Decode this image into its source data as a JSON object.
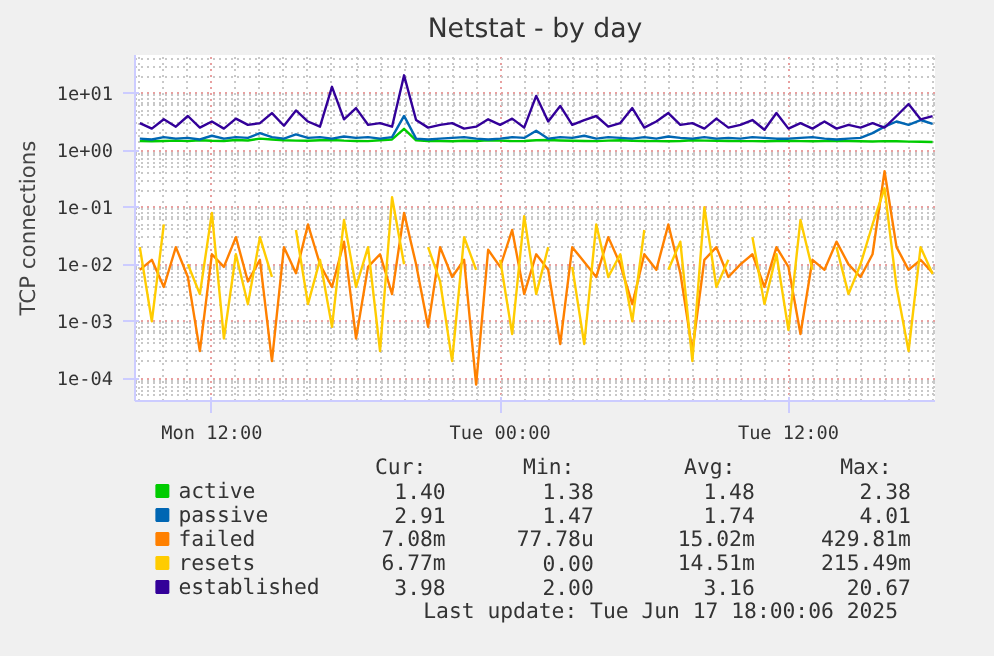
{
  "chart_data": {
    "type": "line",
    "title": "Netstat - by day",
    "ylabel": "TCP connections",
    "x": [
      "2025-06-16T09:00",
      "2025-06-16T09:30",
      "2025-06-16T10:00",
      "2025-06-16T10:30",
      "2025-06-16T11:00",
      "2025-06-16T11:30",
      "2025-06-16T12:00",
      "2025-06-16T12:30",
      "2025-06-16T13:00",
      "2025-06-16T13:30",
      "2025-06-16T14:00",
      "2025-06-16T14:30",
      "2025-06-16T15:00",
      "2025-06-16T15:30",
      "2025-06-16T16:00",
      "2025-06-16T16:30",
      "2025-06-16T17:00",
      "2025-06-16T17:30",
      "2025-06-16T18:00",
      "2025-06-16T18:30",
      "2025-06-16T19:00",
      "2025-06-16T19:30",
      "2025-06-16T20:00",
      "2025-06-16T20:30",
      "2025-06-16T21:00",
      "2025-06-16T21:30",
      "2025-06-16T22:00",
      "2025-06-16T22:30",
      "2025-06-16T23:00",
      "2025-06-16T23:30",
      "2025-06-17T00:00",
      "2025-06-17T00:30",
      "2025-06-17T01:00",
      "2025-06-17T01:30",
      "2025-06-17T02:00",
      "2025-06-17T02:30",
      "2025-06-17T03:00",
      "2025-06-17T03:30",
      "2025-06-17T04:00",
      "2025-06-17T04:30",
      "2025-06-17T05:00",
      "2025-06-17T05:30",
      "2025-06-17T06:00",
      "2025-06-17T06:30",
      "2025-06-17T07:00",
      "2025-06-17T07:30",
      "2025-06-17T08:00",
      "2025-06-17T08:30",
      "2025-06-17T09:00",
      "2025-06-17T09:30",
      "2025-06-17T10:00",
      "2025-06-17T10:30",
      "2025-06-17T11:00",
      "2025-06-17T11:30",
      "2025-06-17T12:00",
      "2025-06-17T12:30",
      "2025-06-17T13:00",
      "2025-06-17T13:30",
      "2025-06-17T14:00",
      "2025-06-17T14:30",
      "2025-06-17T15:00",
      "2025-06-17T15:30",
      "2025-06-17T16:00",
      "2025-06-17T16:30",
      "2025-06-17T17:00",
      "2025-06-17T17:30",
      "2025-06-17T18:00"
    ],
    "xlim": [
      "2025-06-16T08:48",
      "2025-06-17T18:06"
    ],
    "xticks": [
      {
        "value": "2025-06-16T12:00",
        "label": "Mon 12:00"
      },
      {
        "value": "2025-06-17T00:00",
        "label": "Tue 00:00"
      },
      {
        "value": "2025-06-17T12:00",
        "label": "Tue 12:00"
      }
    ],
    "log": "y",
    "ylim": [
      4e-05,
      47
    ],
    "yticks": [
      {
        "value": 0.0001,
        "label": "1e-04"
      },
      {
        "value": 0.001,
        "label": "1e-03"
      },
      {
        "value": 0.01,
        "label": "1e-02"
      },
      {
        "value": 0.1,
        "label": "1e-01"
      },
      {
        "value": 1,
        "label": "1e+00"
      },
      {
        "value": 10,
        "label": "1e+01"
      }
    ],
    "grid": true,
    "legend": "bottom",
    "marker": "none",
    "line_style": "solid",
    "series": [
      {
        "name": "active",
        "color": "#00cc00",
        "values": [
          1.45,
          1.44,
          1.46,
          1.48,
          1.45,
          1.5,
          1.47,
          1.46,
          1.52,
          1.49,
          1.6,
          1.55,
          1.5,
          1.48,
          1.47,
          1.5,
          1.52,
          1.48,
          1.46,
          1.45,
          1.5,
          1.55,
          2.38,
          1.5,
          1.46,
          1.45,
          1.44,
          1.47,
          1.46,
          1.5,
          1.48,
          1.45,
          1.46,
          1.5,
          1.52,
          1.49,
          1.47,
          1.46,
          1.45,
          1.48,
          1.5,
          1.47,
          1.46,
          1.45,
          1.44,
          1.46,
          1.5,
          1.48,
          1.47,
          1.46,
          1.45,
          1.45,
          1.44,
          1.46,
          1.47,
          1.45,
          1.44,
          1.45,
          1.46,
          1.45,
          1.44,
          1.43,
          1.45,
          1.44,
          1.42,
          1.41,
          1.4
        ]
      },
      {
        "name": "passive",
        "color": "#0066b3",
        "values": [
          1.6,
          1.55,
          1.7,
          1.6,
          1.65,
          1.55,
          1.8,
          1.6,
          1.7,
          1.65,
          2.0,
          1.7,
          1.6,
          1.9,
          1.65,
          1.7,
          1.6,
          1.75,
          1.65,
          1.7,
          1.6,
          1.7,
          4.01,
          1.6,
          1.55,
          1.6,
          1.65,
          1.7,
          1.6,
          1.55,
          1.6,
          1.7,
          1.65,
          2.2,
          1.6,
          1.7,
          1.65,
          1.8,
          1.6,
          1.7,
          1.65,
          1.6,
          1.7,
          1.6,
          1.75,
          1.65,
          1.6,
          1.7,
          1.6,
          1.65,
          1.6,
          1.7,
          1.65,
          1.6,
          1.6,
          1.65,
          1.7,
          1.6,
          1.55,
          1.6,
          1.65,
          2.0,
          2.6,
          3.2,
          2.8,
          3.4,
          2.91
        ]
      },
      {
        "name": "failed",
        "color": "#ff8000",
        "values": [
          0.008,
          0.012,
          0.004,
          0.02,
          0.006,
          0.0003,
          0.015,
          0.009,
          0.03,
          0.005,
          0.012,
          0.0002,
          0.02,
          0.007,
          0.05,
          0.01,
          0.004,
          0.025,
          0.0005,
          0.009,
          0.015,
          0.003,
          0.08,
          0.01,
          0.0008,
          0.02,
          0.006,
          0.012,
          7.778e-05,
          0.018,
          0.009,
          0.04,
          0.003,
          0.015,
          0.008,
          0.0004,
          0.02,
          0.011,
          0.006,
          0.03,
          0.01,
          0.002,
          0.015,
          0.008,
          0.05,
          0.007,
          0.0003,
          0.012,
          0.02,
          0.006,
          0.01,
          0.015,
          0.004,
          0.02,
          0.009,
          0.0006,
          0.012,
          0.008,
          0.025,
          0.01,
          0.006,
          0.015,
          0.43,
          0.02,
          0.008,
          0.012,
          0.00708
        ]
      },
      {
        "name": "resets",
        "color": "#ffcc00",
        "values": [
          0.02,
          0.001,
          0.05,
          null,
          0.01,
          0.003,
          0.08,
          0.0005,
          0.015,
          0.002,
          0.03,
          0.006,
          null,
          0.04,
          0.002,
          0.012,
          0.0008,
          0.06,
          0.004,
          0.02,
          0.0003,
          0.15,
          0.01,
          null,
          0.02,
          0.005,
          0.0002,
          0.03,
          0.008,
          null,
          0.012,
          0.0006,
          0.07,
          0.003,
          0.02,
          null,
          0.009,
          0.0004,
          0.05,
          0.006,
          0.015,
          0.001,
          0.04,
          null,
          0.008,
          0.025,
          0.0002,
          0.1,
          0.004,
          0.012,
          null,
          0.03,
          0.002,
          0.015,
          0.0007,
          0.06,
          0.008,
          null,
          0.02,
          0.003,
          0.01,
          0.05,
          0.2155,
          0.004,
          0.0003,
          0.02,
          0.00677
        ]
      },
      {
        "name": "established",
        "color": "#330099",
        "values": [
          3.0,
          2.4,
          3.5,
          2.6,
          4.0,
          2.5,
          3.2,
          2.4,
          3.6,
          2.8,
          3.0,
          4.5,
          2.7,
          5.0,
          3.2,
          2.6,
          13.0,
          3.5,
          5.5,
          2.8,
          3.0,
          2.6,
          20.67,
          3.4,
          2.5,
          2.8,
          3.0,
          2.4,
          2.6,
          3.5,
          2.8,
          3.6,
          2.5,
          9.0,
          3.2,
          6.0,
          2.8,
          3.4,
          4.0,
          2.6,
          3.0,
          5.5,
          2.5,
          3.2,
          4.5,
          2.8,
          3.0,
          2.4,
          3.6,
          2.5,
          2.8,
          3.4,
          2.3,
          4.5,
          2.4,
          3.0,
          2.4,
          3.2,
          2.4,
          2.8,
          2.5,
          3.0,
          2.5,
          4.0,
          6.5,
          3.5,
          3.98
        ]
      }
    ],
    "annotations": [
      "Cur:",
      "Min:",
      "Avg:",
      "Max:",
      "1.40",
      "1.38",
      "1.48",
      "2.38",
      "2.91",
      "1.47",
      "1.74",
      "4.01",
      "7.08m",
      "77.78u",
      "15.02m",
      "429.81m",
      "6.77m",
      "0.00",
      "14.51m",
      "215.49m",
      "3.98",
      "2.00",
      "3.16",
      "20.67",
      "Last update:  Tue Jun 17 18:00:06 2025"
    ]
  }
}
